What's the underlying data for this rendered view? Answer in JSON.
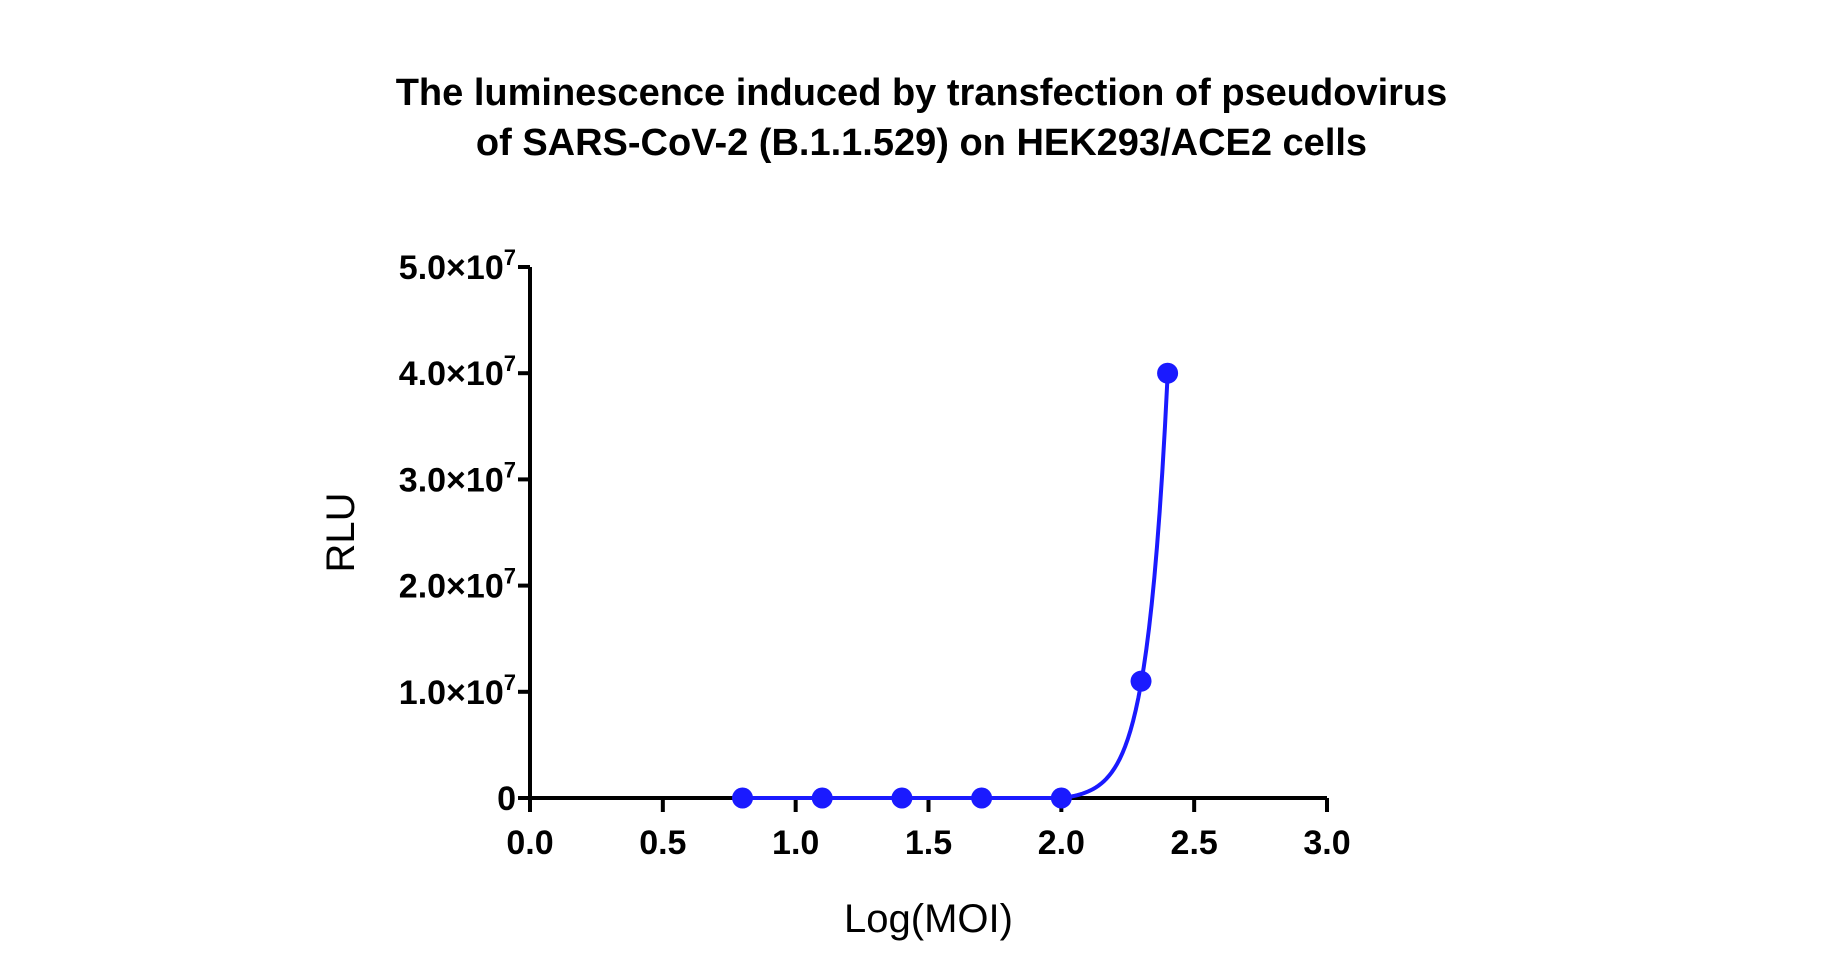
{
  "chart_data": {
    "type": "scatter",
    "title_lines": [
      "The luminescence induced by transfection of pseudovirus",
      "of SARS-CoV-2 (B.1.1.529) on HEK293/ACE2 cells"
    ],
    "xlabel": "Log(MOI)",
    "ylabel": "RLU",
    "xlim": [
      0.0,
      3.0
    ],
    "ylim": [
      0,
      50000000
    ],
    "x_ticks": [
      "0.0",
      "0.5",
      "1.0",
      "1.5",
      "2.0",
      "2.5",
      "3.0"
    ],
    "y_ticks": [
      {
        "value": 0,
        "mantissa": "0",
        "exponent": ""
      },
      {
        "value": 10000000,
        "mantissa": "1.0×10",
        "exponent": "7"
      },
      {
        "value": 20000000,
        "mantissa": "2.0×10",
        "exponent": "7"
      },
      {
        "value": 30000000,
        "mantissa": "3.0×10",
        "exponent": "7"
      },
      {
        "value": 40000000,
        "mantissa": "4.0×10",
        "exponent": "7"
      },
      {
        "value": 50000000,
        "mantissa": "5.0×10",
        "exponent": "7"
      }
    ],
    "points": [
      {
        "x": 0.8,
        "y": 0
      },
      {
        "x": 1.1,
        "y": 0
      },
      {
        "x": 1.4,
        "y": 0
      },
      {
        "x": 1.7,
        "y": 0
      },
      {
        "x": 2.0,
        "y": 0
      },
      {
        "x": 2.3,
        "y": 11000000
      },
      {
        "x": 2.4,
        "y": 40000000
      }
    ],
    "fit_curve": true,
    "grid": false,
    "colors": {
      "series": "#1a1aff",
      "axis": "#000000"
    }
  }
}
